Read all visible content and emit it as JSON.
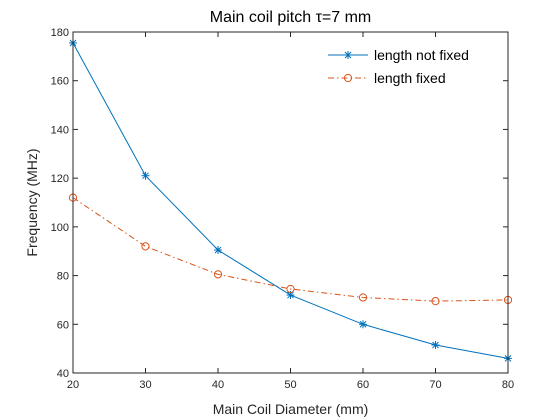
{
  "chart_data": {
    "type": "line",
    "title": "Main coil pitch τ=7 mm",
    "xlabel": "Main Coil Diameter (mm)",
    "ylabel": "Frequency (MHz)",
    "xlim": [
      20,
      80
    ],
    "ylim": [
      40,
      180
    ],
    "xticks": [
      20,
      30,
      40,
      50,
      60,
      70,
      80
    ],
    "yticks": [
      40,
      60,
      80,
      100,
      120,
      140,
      160,
      180
    ],
    "grid": false,
    "legend_position": "top-right",
    "x": [
      20,
      30,
      40,
      50,
      60,
      70,
      80
    ],
    "series": [
      {
        "name": "length not fixed",
        "values": [
          175.5,
          121,
          90.5,
          72,
          60,
          51.5,
          46
        ],
        "color": "#0072BD",
        "marker": "asterisk",
        "line_style": "solid"
      },
      {
        "name": "length fixed",
        "values": [
          112,
          92,
          80.5,
          74.5,
          71,
          69.5,
          70
        ],
        "color": "#D95319",
        "marker": "circle",
        "line_style": "dash-dot"
      }
    ]
  }
}
